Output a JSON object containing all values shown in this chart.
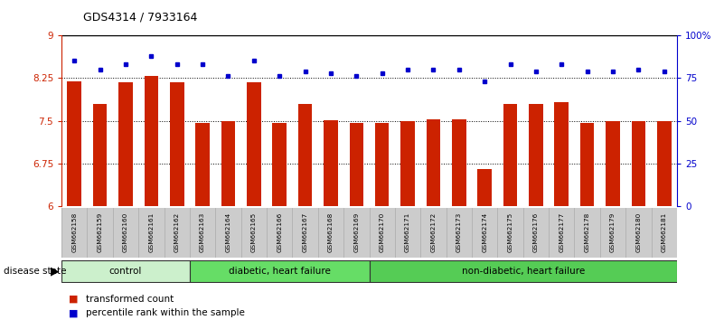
{
  "title": "GDS4314 / 7933164",
  "samples": [
    "GSM662158",
    "GSM662159",
    "GSM662160",
    "GSM662161",
    "GSM662162",
    "GSM662163",
    "GSM662164",
    "GSM662165",
    "GSM662166",
    "GSM662167",
    "GSM662168",
    "GSM662169",
    "GSM662170",
    "GSM662171",
    "GSM662172",
    "GSM662173",
    "GSM662174",
    "GSM662175",
    "GSM662176",
    "GSM662177",
    "GSM662178",
    "GSM662179",
    "GSM662180",
    "GSM662181"
  ],
  "bar_values": [
    8.19,
    7.79,
    8.17,
    8.28,
    8.18,
    7.47,
    7.5,
    8.17,
    7.46,
    7.79,
    7.51,
    7.46,
    7.46,
    7.5,
    7.52,
    7.52,
    6.65,
    7.79,
    7.79,
    7.82,
    7.46,
    7.5,
    7.5,
    7.5
  ],
  "dot_values": [
    85,
    80,
    83,
    88,
    83,
    83,
    76,
    85,
    76,
    79,
    78,
    76,
    78,
    80,
    80,
    80,
    73,
    83,
    79,
    83,
    79,
    79,
    80,
    79
  ],
  "ylim_left": [
    6,
    9
  ],
  "ylim_right": [
    0,
    100
  ],
  "yticks_left": [
    6,
    6.75,
    7.5,
    8.25,
    9
  ],
  "ytick_labels_left": [
    "6",
    "6.75",
    "7.5",
    "8.25",
    "9"
  ],
  "yticks_right": [
    0,
    25,
    50,
    75,
    100
  ],
  "ytick_labels_right": [
    "0",
    "25",
    "50",
    "75",
    "100%"
  ],
  "bar_color": "#cc2200",
  "dot_color": "#0000cc",
  "groups": [
    {
      "label": "control",
      "start": 0,
      "end": 5,
      "color": "#ccf0cc"
    },
    {
      "label": "diabetic, heart failure",
      "start": 5,
      "end": 12,
      "color": "#66dd66"
    },
    {
      "label": "non-diabetic, heart failure",
      "start": 12,
      "end": 24,
      "color": "#55cc55"
    }
  ],
  "group_label": "disease state",
  "legend_items": [
    {
      "label": "transformed count",
      "color": "#cc2200"
    },
    {
      "label": "percentile rank within the sample",
      "color": "#0000cc"
    }
  ],
  "hline_values": [
    6.75,
    7.5,
    8.25
  ],
  "top_hline": 9,
  "background_color": "#ffffff",
  "xtick_bg": "#cccccc"
}
